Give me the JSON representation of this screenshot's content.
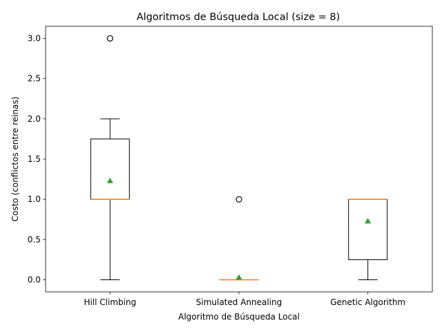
{
  "chart_data": {
    "type": "boxplot",
    "title": "Algoritmos de Búsqueda Local (size = 8)",
    "xlabel": "Algoritmo de Búsqueda Local",
    "ylabel": "Costo (conflictos entre reinas)",
    "ylim": [
      -0.15,
      3.15
    ],
    "yticks": [
      0.0,
      0.5,
      1.0,
      1.5,
      2.0,
      2.5,
      3.0
    ],
    "ytick_labels": [
      "0.0",
      "0.5",
      "1.0",
      "1.5",
      "2.0",
      "2.5",
      "3.0"
    ],
    "grid": false,
    "colors": {
      "box": "#000000",
      "median": "#ff7f0e",
      "mean": "#2ca02c",
      "outlier": "#000000"
    },
    "categories": [
      "Hill Climbing",
      "Simulated Annealing",
      "Genetic Algorithm"
    ],
    "boxes": [
      {
        "whisker_low": 0,
        "q1": 1,
        "median": 1,
        "q3": 1.75,
        "whisker_high": 2,
        "mean": 1.23,
        "outliers": [
          3
        ]
      },
      {
        "whisker_low": 0,
        "q1": 0,
        "median": 0,
        "q3": 0,
        "whisker_high": 0,
        "mean": 0.03,
        "outliers": [
          1
        ]
      },
      {
        "whisker_low": 0,
        "q1": 0.25,
        "median": 1,
        "q3": 1,
        "whisker_high": 1,
        "mean": 0.73,
        "outliers": []
      }
    ]
  }
}
